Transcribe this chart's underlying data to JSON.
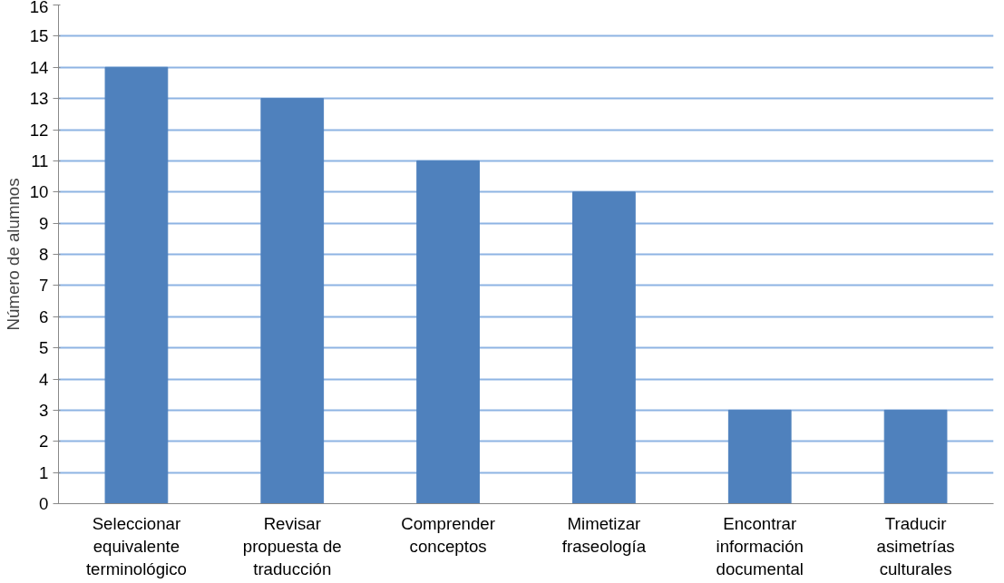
{
  "chart_data": {
    "type": "bar",
    "ylabel": "Número de alumnos",
    "categories": [
      "Seleccionar\nequivalente\nterminológico",
      "Revisar\npropuesta de\ntraducción",
      "Comprender\nconceptos",
      "Mimetizar\nfraseología",
      "Encontrar\ninformación\ndocumental",
      "Traducir\nasimetrías\nculturales"
    ],
    "values": [
      14,
      13,
      11,
      10,
      3,
      3
    ],
    "color": "#4f81bd",
    "ylim": [
      0,
      16
    ],
    "yticks": [
      0,
      1,
      2,
      3,
      4,
      5,
      6,
      7,
      8,
      9,
      10,
      11,
      12,
      13,
      14,
      15,
      16
    ],
    "grid": "y"
  }
}
